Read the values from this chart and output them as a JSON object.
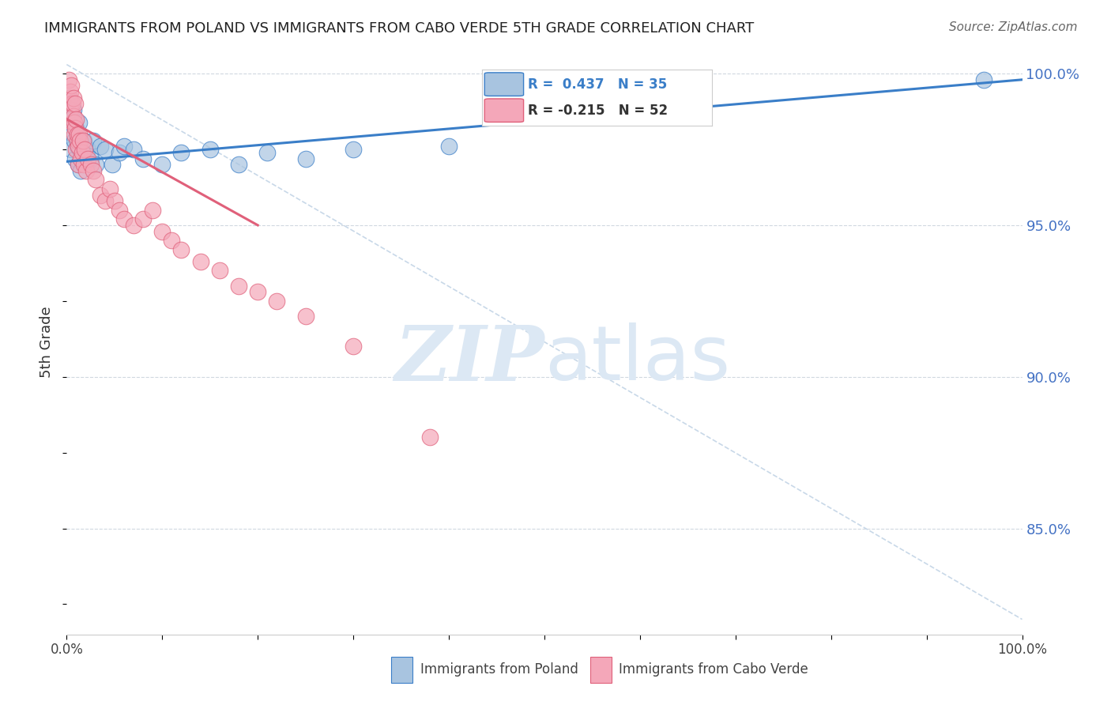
{
  "title": "IMMIGRANTS FROM POLAND VS IMMIGRANTS FROM CABO VERDE 5TH GRADE CORRELATION CHART",
  "source_text": "Source: ZipAtlas.com",
  "ylabel": "5th Grade",
  "color_poland": "#a8c4e0",
  "color_caboverde": "#f4a7b9",
  "color_poland_line": "#3a7ec8",
  "color_caboverde_line": "#e0607a",
  "color_dashed": "#c8d8e8",
  "color_dashed_caboverde": "#f4c0cc",
  "watermark_color": "#dce8f4",
  "yticks": [
    0.85,
    0.9,
    0.95,
    1.0
  ],
  "ytick_labels": [
    "85.0%",
    "90.0%",
    "95.0%",
    "100.0%"
  ],
  "poland_scatter_x": [
    0.003,
    0.004,
    0.005,
    0.006,
    0.007,
    0.008,
    0.009,
    0.01,
    0.011,
    0.012,
    0.013,
    0.014,
    0.015,
    0.018,
    0.02,
    0.022,
    0.025,
    0.028,
    0.03,
    0.035,
    0.04,
    0.048,
    0.055,
    0.06,
    0.07,
    0.08,
    0.1,
    0.12,
    0.15,
    0.18,
    0.21,
    0.25,
    0.3,
    0.4,
    0.96
  ],
  "poland_scatter_y": [
    0.992,
    0.985,
    0.975,
    0.98,
    0.988,
    0.978,
    0.972,
    0.982,
    0.976,
    0.97,
    0.984,
    0.975,
    0.968,
    0.978,
    0.974,
    0.975,
    0.972,
    0.978,
    0.97,
    0.976,
    0.975,
    0.97,
    0.974,
    0.976,
    0.975,
    0.972,
    0.97,
    0.974,
    0.975,
    0.97,
    0.974,
    0.972,
    0.975,
    0.976,
    0.998
  ],
  "caboverde_scatter_x": [
    0.002,
    0.003,
    0.004,
    0.004,
    0.005,
    0.005,
    0.006,
    0.006,
    0.007,
    0.007,
    0.008,
    0.008,
    0.009,
    0.009,
    0.01,
    0.01,
    0.011,
    0.011,
    0.012,
    0.012,
    0.013,
    0.014,
    0.015,
    0.016,
    0.017,
    0.018,
    0.019,
    0.02,
    0.022,
    0.025,
    0.028,
    0.03,
    0.035,
    0.04,
    0.045,
    0.05,
    0.055,
    0.06,
    0.07,
    0.08,
    0.09,
    0.1,
    0.11,
    0.12,
    0.14,
    0.16,
    0.18,
    0.2,
    0.22,
    0.25,
    0.3,
    0.38
  ],
  "caboverde_scatter_y": [
    0.998,
    0.992,
    0.994,
    0.988,
    0.996,
    0.99,
    0.984,
    0.99,
    0.986,
    0.992,
    0.98,
    0.984,
    0.982,
    0.99,
    0.975,
    0.985,
    0.978,
    0.98,
    0.97,
    0.976,
    0.98,
    0.978,
    0.972,
    0.974,
    0.978,
    0.97,
    0.975,
    0.968,
    0.972,
    0.97,
    0.968,
    0.965,
    0.96,
    0.958,
    0.962,
    0.958,
    0.955,
    0.952,
    0.95,
    0.952,
    0.955,
    0.948,
    0.945,
    0.942,
    0.938,
    0.935,
    0.93,
    0.928,
    0.925,
    0.92,
    0.91,
    0.88
  ],
  "poland_line_x": [
    0.0,
    1.0
  ],
  "poland_line_y": [
    0.971,
    0.998
  ],
  "caboverde_line_x": [
    0.0,
    0.2
  ],
  "caboverde_line_y": [
    0.985,
    0.95
  ],
  "dashed_line_x": [
    0.0,
    1.0
  ],
  "dashed_line_y": [
    1.003,
    0.82
  ],
  "xlim": [
    0.0,
    1.0
  ],
  "ylim": [
    0.815,
    1.008
  ]
}
